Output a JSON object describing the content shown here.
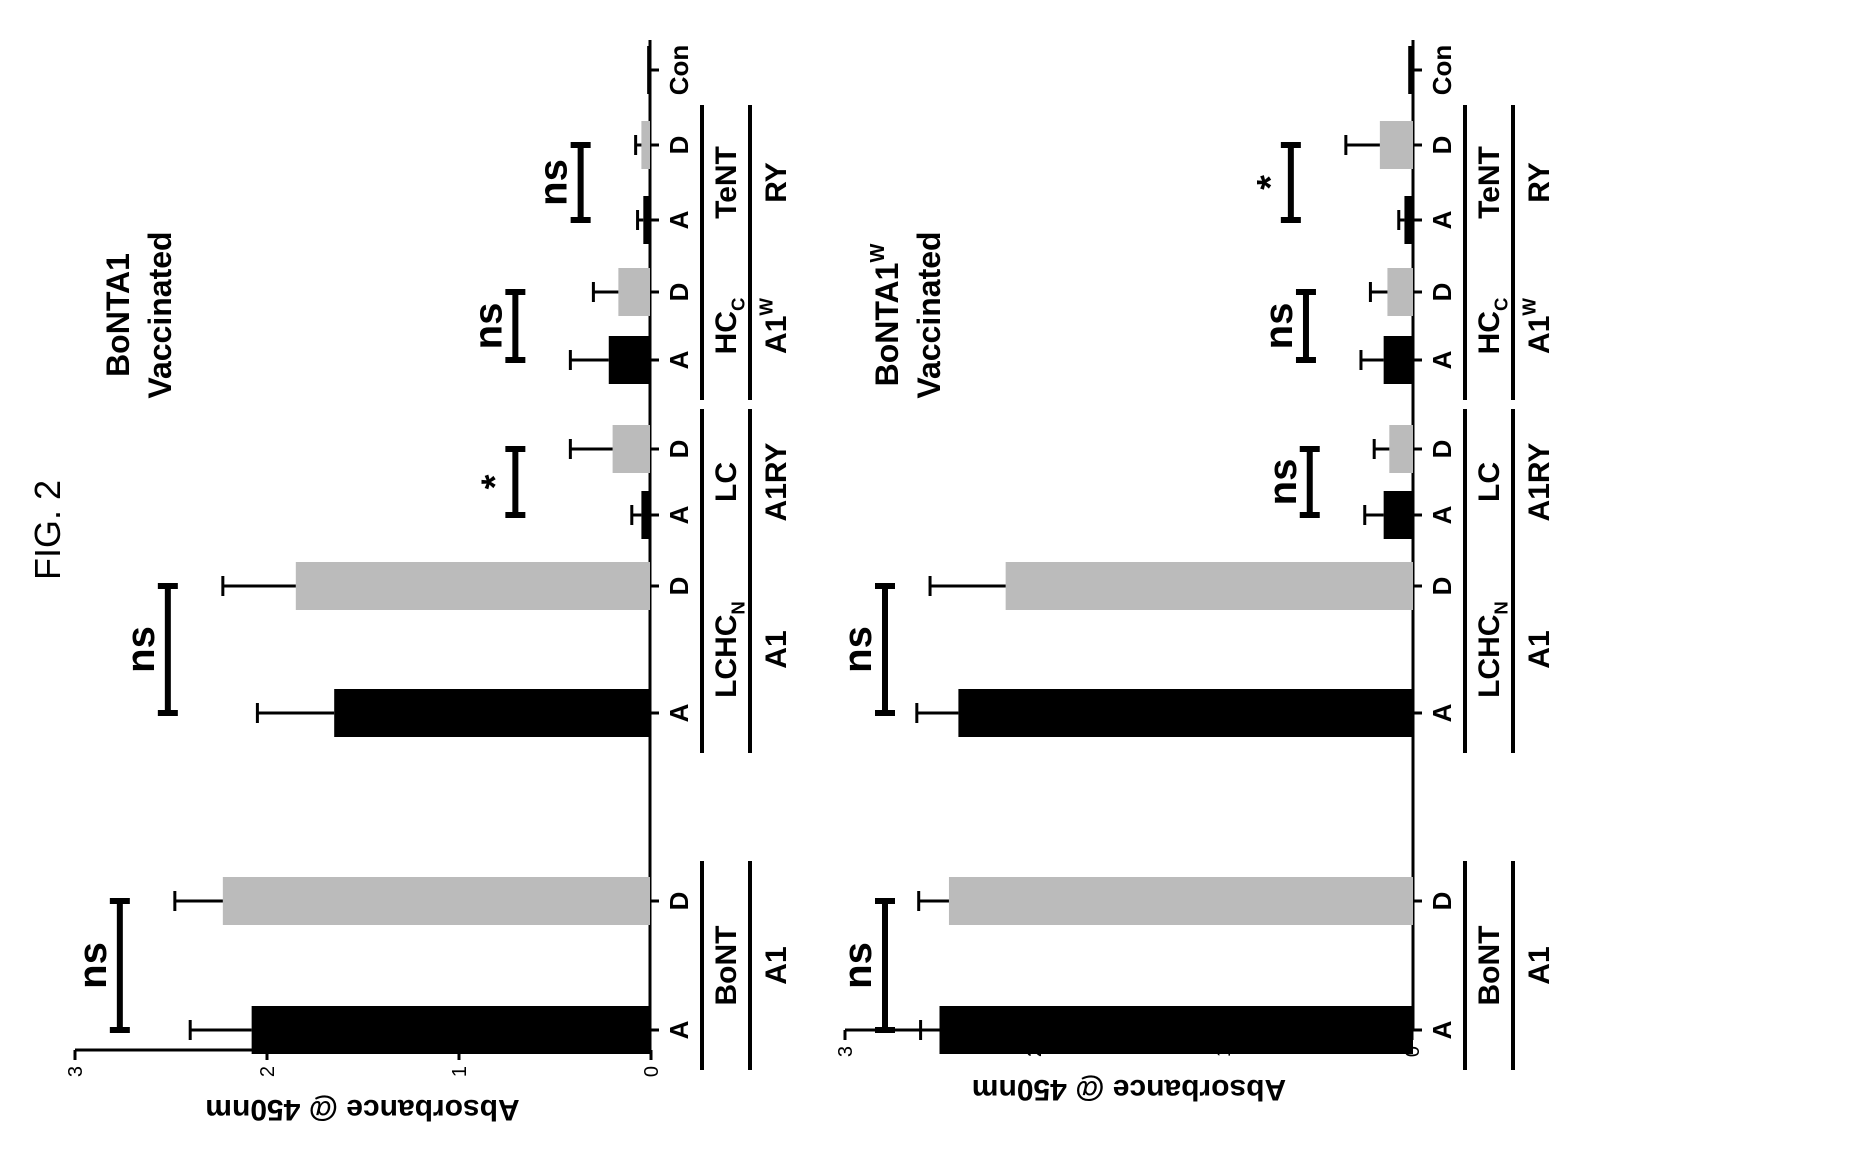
{
  "figure_label": "FIG. 2",
  "colors": {
    "dark_bar": "#000000",
    "light_bar": "#bbbbbb",
    "ink": "#000000",
    "background": "#ffffff"
  },
  "chart_data": [
    {
      "type": "bar",
      "title": "BoNTA1",
      "title_sup": "",
      "subtitle": "Vaccinated",
      "ylabel": "Absorbance @ 450nm",
      "ylim": [
        0,
        3
      ],
      "yticks": [
        0,
        1,
        2,
        3
      ],
      "layout": "figure rotated 90° counter-clockwise; value axis vertical on page",
      "groups": [
        {
          "line1": "BoNT",
          "line1_sub": "",
          "line2": "A1",
          "line2_sup": "",
          "sig": "ns",
          "bars": [
            {
              "label": "A",
              "value": 2.08,
              "error": 0.32
            },
            {
              "label": "D",
              "value": 2.23,
              "error": 0.25
            }
          ]
        },
        {
          "line1": "LCHC",
          "line1_sub": "N",
          "line2": "A1",
          "line2_sup": "",
          "sig": "ns",
          "bars": [
            {
              "label": "A",
              "value": 1.65,
              "error": 0.4
            },
            {
              "label": "D",
              "value": 1.85,
              "error": 0.38
            }
          ]
        },
        {
          "line1": "LC",
          "line1_sub": "",
          "line2": "A1RY",
          "line2_sup": "",
          "sig": "*",
          "bars": [
            {
              "label": "A",
              "value": 0.05,
              "error": 0.05
            },
            {
              "label": "D",
              "value": 0.2,
              "error": 0.22
            }
          ]
        },
        {
          "line1": "HC",
          "line1_sub": "C",
          "line2": "A1",
          "line2_sup": "W",
          "sig": "ns",
          "bars": [
            {
              "label": "A",
              "value": 0.22,
              "error": 0.2
            },
            {
              "label": "D",
              "value": 0.17,
              "error": 0.13
            }
          ]
        },
        {
          "line1": "TeNT",
          "line1_sub": "",
          "line2": "RY",
          "line2_sup": "",
          "sig": "ns",
          "bars": [
            {
              "label": "A",
              "value": 0.04,
              "error": 0.03
            },
            {
              "label": "D",
              "value": 0.05,
              "error": 0.03
            }
          ]
        },
        {
          "line1": "",
          "line1_sub": "",
          "line2": "",
          "line2_sup": "",
          "sig": "",
          "bars": [
            {
              "label": "Con",
              "value": 0.02,
              "error": 0.0
            }
          ]
        }
      ]
    },
    {
      "type": "bar",
      "title": "BoNTA1",
      "title_sup": "W",
      "subtitle": "Vaccinated",
      "ylabel": "Absorbance @ 450nm",
      "ylim": [
        0,
        3
      ],
      "yticks": [
        0,
        1,
        2,
        3
      ],
      "layout": "figure rotated 90° counter-clockwise; value axis vertical on page",
      "groups": [
        {
          "line1": "BoNT",
          "line1_sub": "",
          "line2": "A1",
          "line2_sup": "",
          "sig": "ns",
          "bars": [
            {
              "label": "A",
              "value": 2.5,
              "error": 0.1
            },
            {
              "label": "D",
              "value": 2.45,
              "error": 0.16
            }
          ]
        },
        {
          "line1": "LCHC",
          "line1_sub": "N",
          "line2": "A1",
          "line2_sup": "",
          "sig": "ns",
          "bars": [
            {
              "label": "A",
              "value": 2.4,
              "error": 0.22
            },
            {
              "label": "D",
              "value": 2.15,
              "error": 0.4
            }
          ]
        },
        {
          "line1": "LC",
          "line1_sub": "",
          "line2": "A1RY",
          "line2_sup": "",
          "sig": "ns",
          "bars": [
            {
              "label": "A",
              "value": 0.15,
              "error": 0.1
            },
            {
              "label": "D",
              "value": 0.12,
              "error": 0.08
            }
          ]
        },
        {
          "line1": "HC",
          "line1_sub": "C",
          "line2": "A1",
          "line2_sup": "W",
          "sig": "ns",
          "bars": [
            {
              "label": "A",
              "value": 0.15,
              "error": 0.12
            },
            {
              "label": "D",
              "value": 0.13,
              "error": 0.09
            }
          ]
        },
        {
          "line1": "TeNT",
          "line1_sub": "",
          "line2": "RY",
          "line2_sup": "",
          "sig": "*",
          "bars": [
            {
              "label": "A",
              "value": 0.04,
              "error": 0.03
            },
            {
              "label": "D",
              "value": 0.17,
              "error": 0.18
            }
          ]
        },
        {
          "line1": "",
          "line1_sub": "",
          "line2": "",
          "line2_sup": "",
          "sig": "",
          "bars": [
            {
              "label": "Con",
              "value": 0.02,
              "error": 0.0
            }
          ]
        }
      ]
    }
  ]
}
